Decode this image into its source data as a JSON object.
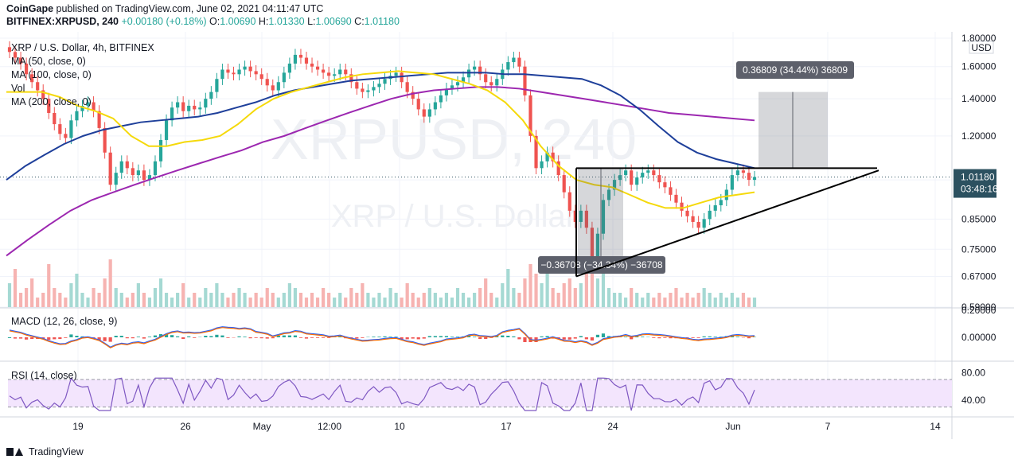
{
  "header": {
    "line1_bold": "CoinGape",
    "line1_rest": " published on TradingView.com, June 02, 2021 04:11:47 UTC",
    "line2_symbol": "BITFINEX:XRPUSD, 240",
    "line2_change": "+0.00180 (+0.18%)",
    "line2_o_label": "O:",
    "line2_o": "1.00690",
    "line2_h_label": "H:",
    "line2_h": "1.01330",
    "line2_l_label": "L:",
    "line2_l": "1.00690",
    "line2_c_label": "C:",
    "line2_c": "1.01180"
  },
  "legend": {
    "title": "XRP / U.S. Dollar, 4h, BITFINEX",
    "ma50": "MA (50, close, 0)",
    "ma100": "MA (100, close, 0)",
    "vol": "Vol",
    "ma200": "MA (200, close, 0)",
    "macd": "MACD (12, 26, close, 9)",
    "rsi": "RSI (14, close)"
  },
  "watermark": {
    "symbol": "XRPUSD, 240",
    "name": "XRP / U.S. Dollar"
  },
  "footer": {
    "brand": "TradingView"
  },
  "colors": {
    "up": "#26a69a",
    "down": "#ef5350",
    "ma50": "#f5d90a",
    "ma100": "#1e3f9a",
    "ma200": "#9c27b0",
    "macd": "#2962ff",
    "signal": "#ff6d00",
    "rsi": "#7e57c2",
    "rsi_band": "#f3e5fd",
    "price_tag": "#2c5160",
    "measure": "#5d606b"
  },
  "chart_data": {
    "type": "candlestick",
    "price_scale": {
      "currency": "USD",
      "scale": "log",
      "ticks": [
        "1.80000",
        "1.60000",
        "1.40000",
        "1.20000",
        "1.00000",
        "0.85000",
        "0.75000",
        "0.67000",
        "0.59000"
      ],
      "tick_values": [
        1.8,
        1.6,
        1.4,
        1.2,
        1.0,
        0.85,
        0.75,
        0.67,
        0.59
      ]
    },
    "x_ticks": [
      "19",
      "26",
      "May",
      "12:00",
      "10",
      "17",
      "24",
      "Jun",
      "7",
      "14"
    ],
    "current_price": {
      "value": "1.01180",
      "countdown": "03:48:16"
    },
    "candles_close": [
      1.7,
      1.66,
      1.62,
      1.55,
      1.5,
      1.45,
      1.4,
      1.32,
      1.26,
      1.21,
      1.19,
      1.28,
      1.33,
      1.36,
      1.38,
      1.33,
      1.24,
      1.12,
      0.98,
      1.03,
      1.08,
      1.05,
      1.02,
      1.04,
      1.0,
      1.02,
      1.08,
      1.18,
      1.28,
      1.35,
      1.38,
      1.33,
      1.36,
      1.34,
      1.35,
      1.4,
      1.44,
      1.52,
      1.58,
      1.56,
      1.55,
      1.58,
      1.6,
      1.57,
      1.55,
      1.52,
      1.48,
      1.45,
      1.5,
      1.56,
      1.62,
      1.68,
      1.66,
      1.62,
      1.6,
      1.58,
      1.56,
      1.54,
      1.55,
      1.58,
      1.55,
      1.5,
      1.46,
      1.44,
      1.45,
      1.47,
      1.49,
      1.52,
      1.54,
      1.56,
      1.5,
      1.44,
      1.4,
      1.34,
      1.3,
      1.34,
      1.38,
      1.42,
      1.46,
      1.48,
      1.5,
      1.53,
      1.58,
      1.6,
      1.55,
      1.5,
      1.48,
      1.52,
      1.58,
      1.63,
      1.66,
      1.6,
      1.42,
      1.2,
      1.05,
      1.08,
      1.12,
      1.08,
      1.02,
      0.95,
      0.88,
      0.84,
      0.88,
      0.82,
      0.72,
      0.8,
      0.92,
      0.96,
      1.0,
      1.02,
      1.04,
      0.98,
      1.01,
      1.03,
      1.04,
      1.02,
      0.99,
      0.97,
      0.94,
      0.91,
      0.88,
      0.86,
      0.84,
      0.82,
      0.85,
      0.88,
      0.9,
      0.92,
      0.96,
      1.02,
      1.04,
      1.03,
      1.0,
      1.012
    ],
    "ma50_close": [
      1.44,
      1.44,
      1.44,
      1.41,
      1.36,
      1.33,
      1.29,
      1.2,
      1.15,
      1.15,
      1.17,
      1.18,
      1.2,
      1.26,
      1.34,
      1.4,
      1.44,
      1.47,
      1.5,
      1.53,
      1.55,
      1.56,
      1.57,
      1.56,
      1.55,
      1.52,
      1.49,
      1.45,
      1.38,
      1.28,
      1.15,
      1.06,
      1.0,
      0.98,
      0.97,
      0.94,
      0.91,
      0.89,
      0.89,
      0.91,
      0.93,
      0.94,
      0.95
    ],
    "ma100_close": [
      1.0,
      1.06,
      1.11,
      1.16,
      1.2,
      1.23,
      1.25,
      1.27,
      1.28,
      1.29,
      1.3,
      1.32,
      1.35,
      1.38,
      1.42,
      1.45,
      1.47,
      1.49,
      1.51,
      1.52,
      1.53,
      1.54,
      1.55,
      1.56,
      1.56,
      1.56,
      1.55,
      1.55,
      1.54,
      1.53,
      1.52,
      1.48,
      1.42,
      1.34,
      1.25,
      1.17,
      1.12,
      1.09,
      1.07,
      1.05
    ],
    "ma200_close": [
      0.73,
      0.78,
      0.83,
      0.88,
      0.92,
      0.95,
      0.98,
      1.01,
      1.04,
      1.07,
      1.1,
      1.13,
      1.17,
      1.2,
      1.24,
      1.28,
      1.32,
      1.36,
      1.4,
      1.43,
      1.45,
      1.46,
      1.47,
      1.47,
      1.46,
      1.44,
      1.42,
      1.4,
      1.38,
      1.36,
      1.34,
      1.32,
      1.31,
      1.3,
      1.29,
      1.28
    ],
    "measure_up": {
      "label": "0.36809 (34.44%) 36809"
    },
    "measure_down": {
      "label": "−0.36708 (−34.34%) −36708"
    },
    "volume_rel": [
      0.5,
      0.8,
      0.3,
      0.4,
      0.6,
      0.2,
      0.3,
      0.9,
      0.4,
      0.3,
      0.2,
      0.5,
      0.7,
      0.3,
      0.2,
      0.4,
      0.3,
      0.6,
      1.0,
      0.4,
      0.3,
      0.2,
      0.3,
      0.5,
      0.3,
      0.2,
      0.4,
      0.6,
      0.3,
      0.2,
      0.3,
      0.5,
      0.2,
      0.3,
      0.2,
      0.4,
      0.3,
      0.5,
      0.3,
      0.2,
      0.3,
      0.4,
      0.3,
      0.2,
      0.3,
      0.2,
      0.4,
      0.3,
      0.2,
      0.3,
      0.5,
      0.4,
      0.3,
      0.2,
      0.3,
      0.2,
      0.4,
      0.3,
      0.2,
      0.3,
      0.2,
      0.4,
      0.3,
      0.5,
      0.3,
      0.2,
      0.3,
      0.2,
      0.4,
      0.3,
      0.2,
      0.5,
      0.3,
      0.2,
      0.3,
      0.4,
      0.3,
      0.2,
      0.3,
      0.2,
      0.4,
      0.3,
      0.2,
      0.3,
      0.4,
      0.6,
      0.3,
      0.2,
      0.5,
      0.8,
      0.4,
      0.3,
      0.6,
      0.9,
      0.7,
      0.5,
      0.8,
      0.4,
      0.3,
      0.5,
      0.6,
      0.4,
      0.5,
      0.7,
      0.9,
      0.6,
      0.8,
      0.4,
      0.3,
      0.3,
      0.2,
      0.4,
      0.3,
      0.2,
      0.3,
      0.2,
      0.3,
      0.2,
      0.3,
      0.4,
      0.2,
      0.3,
      0.2,
      0.3,
      0.4,
      0.3,
      0.2,
      0.3,
      0.2,
      0.3,
      0.2,
      0.3,
      0.2,
      0.2
    ],
    "macd_scale": {
      "ticks": [
        "0.20000",
        "0.00000"
      ],
      "tick_values": [
        0.2,
        0.0
      ]
    },
    "rsi_scale": {
      "ticks": [
        "80.00",
        "40.00"
      ],
      "tick_values": [
        80,
        40
      ],
      "band": [
        30,
        70
      ]
    }
  }
}
